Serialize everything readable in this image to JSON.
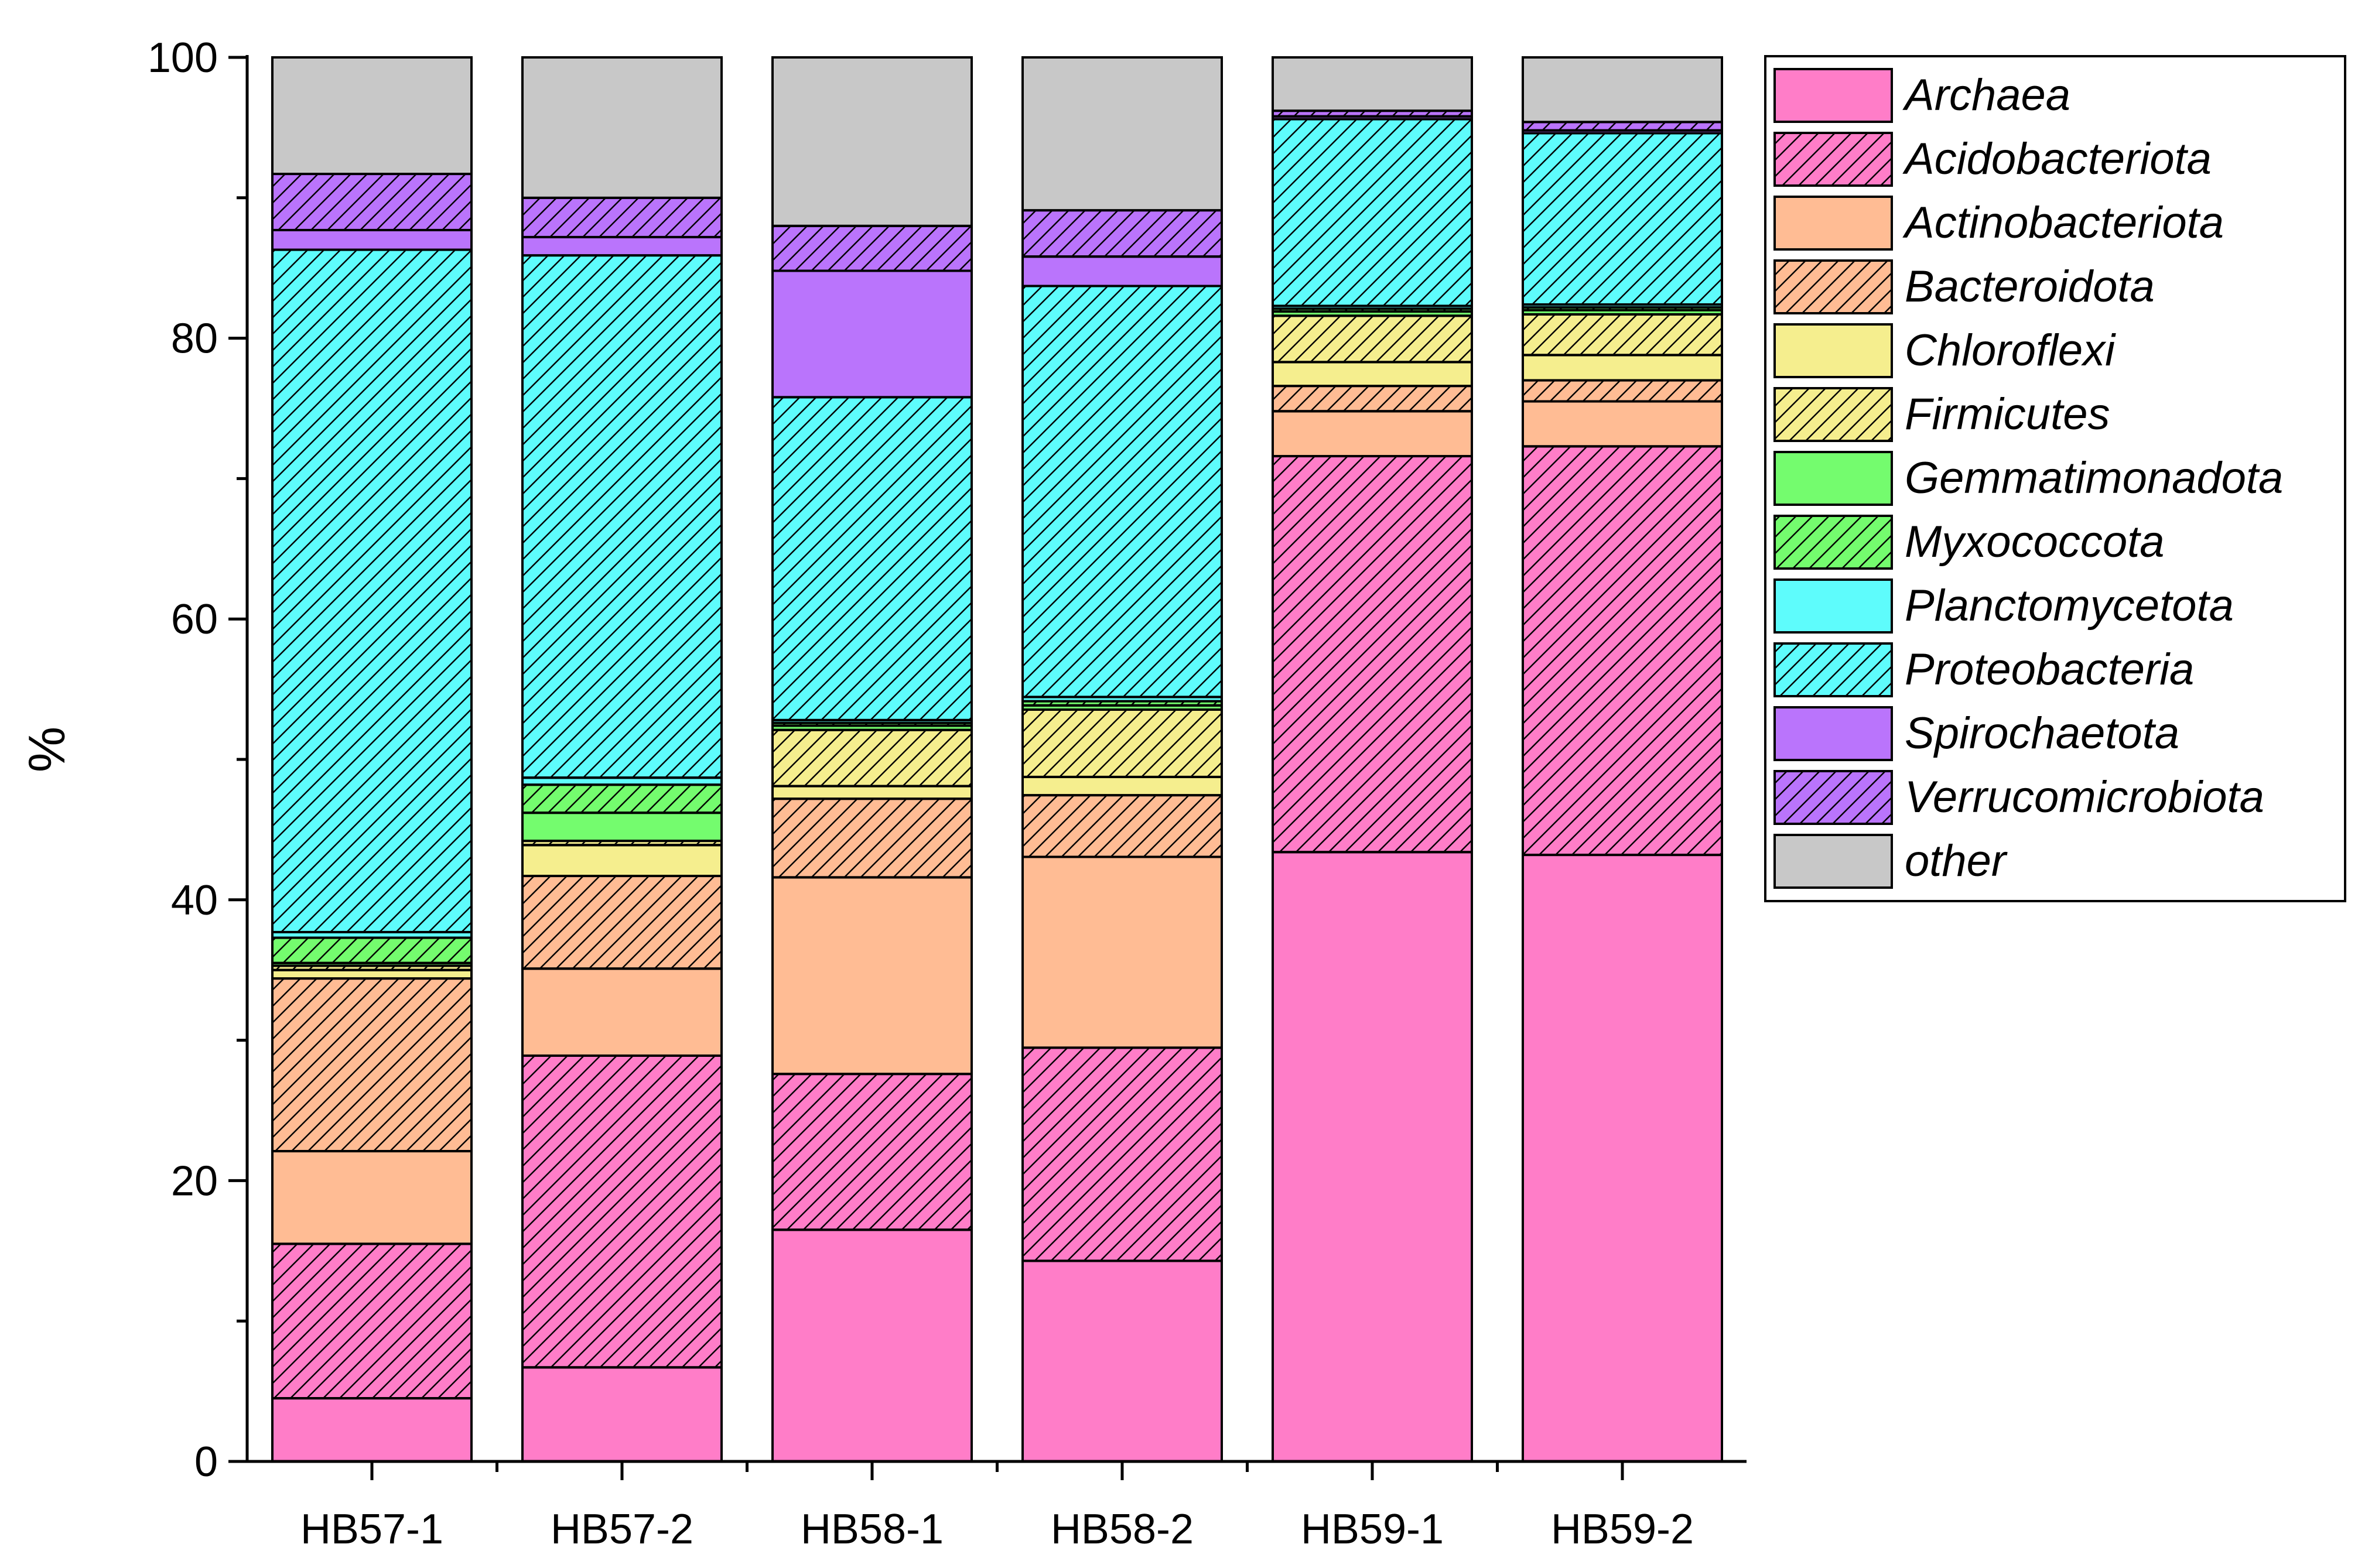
{
  "chart_data": {
    "type": "bar",
    "stacked": true,
    "title": "",
    "xlabel": "",
    "ylabel": "%",
    "ylim": [
      0,
      100
    ],
    "yticks": [
      0,
      20,
      40,
      60,
      80,
      100
    ],
    "yticks_labels": [
      "0",
      "20",
      "40",
      "60",
      "80",
      "100"
    ],
    "categories": [
      "HB57-1",
      "HB57-2",
      "HB58-1",
      "HB58-2",
      "HB59-1",
      "HB59-2"
    ],
    "legend_position": "right",
    "series": [
      {
        "name": "Archaea",
        "color": "#FF7DC8",
        "hatch": false,
        "values": [
          4.5,
          6.7,
          16.5,
          14.3,
          43.4,
          43.2
        ]
      },
      {
        "name": "Acidobacteriota",
        "color": "#FF7DC8",
        "hatch": true,
        "values": [
          11.0,
          22.2,
          11.1,
          15.2,
          28.2,
          29.1
        ]
      },
      {
        "name": "Actinobacteriota",
        "color": "#FFBC94",
        "hatch": false,
        "values": [
          6.6,
          6.2,
          14.0,
          13.6,
          3.2,
          3.2
        ]
      },
      {
        "name": "Bacteroidota",
        "color": "#FFBC94",
        "hatch": true,
        "values": [
          12.3,
          6.6,
          5.6,
          4.4,
          1.8,
          1.5
        ]
      },
      {
        "name": "Chloroflexi",
        "color": "#F5EE8E",
        "hatch": false,
        "values": [
          0.6,
          2.2,
          0.9,
          1.3,
          1.7,
          1.8
        ]
      },
      {
        "name": "Firmicutes",
        "color": "#F5EE8E",
        "hatch": true,
        "values": [
          0.3,
          0.3,
          4.0,
          4.8,
          3.3,
          2.9
        ]
      },
      {
        "name": "Gemmatimonadota",
        "color": "#74FC6E",
        "hatch": false,
        "values": [
          0.2,
          2.0,
          0.3,
          0.3,
          0.3,
          0.3
        ]
      },
      {
        "name": "Myxococcota",
        "color": "#74FC6E",
        "hatch": true,
        "values": [
          1.8,
          2.0,
          0.2,
          0.3,
          0.2,
          0.2
        ]
      },
      {
        "name": "Planctomycetota",
        "color": "#5EFCFC",
        "hatch": false,
        "values": [
          0.4,
          0.5,
          0.2,
          0.3,
          0.2,
          0.2
        ]
      },
      {
        "name": "Proteobacteria",
        "color": "#5EFCFC",
        "hatch": true,
        "values": [
          48.6,
          37.2,
          23.0,
          29.3,
          13.3,
          12.2
        ]
      },
      {
        "name": "Spirochaetota",
        "color": "#BA74FC",
        "hatch": false,
        "values": [
          1.4,
          1.3,
          9.0,
          2.1,
          0.2,
          0.2
        ]
      },
      {
        "name": "Verrucomicrobiota",
        "color": "#BA74FC",
        "hatch": true,
        "values": [
          4.0,
          2.8,
          3.2,
          3.3,
          0.4,
          0.6
        ]
      },
      {
        "name": "other",
        "color": "#C8C8C8",
        "hatch": false,
        "values": [
          8.3,
          10.0,
          12.0,
          10.9,
          3.8,
          4.6
        ]
      }
    ]
  }
}
